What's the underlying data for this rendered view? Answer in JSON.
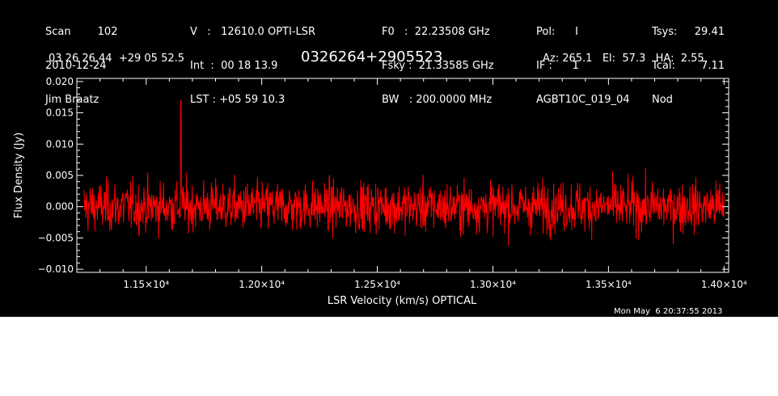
{
  "header": {
    "col1": [
      "Scan        102",
      "2010-12-24",
      "Jim Braatz"
    ],
    "col2": [
      "V   :   12610.0 OPTI-LSR",
      "Int  :  00 18 13.9",
      "LST : +05 59 10.3"
    ],
    "col3": [
      "F0   :  22.23508 GHz",
      "Fsky :  21.33585 GHz",
      "BW   : 200.0000 MHz"
    ],
    "col4": [
      "Pol:      I",
      "IF :      1",
      "AGBT10C_019_04"
    ],
    "col5a": [
      "Tsys:",
      "Tcal:",
      "Nod"
    ],
    "col5b": [
      "29.41",
      "7.11",
      ""
    ],
    "coords": "03 26 26.44  +29 05 52.5",
    "source": "0326264+2905523",
    "azel": "Az: 265.1   El:  57.3   HA:  2.55",
    "timestamp": "Mon May  6 20:37:55 2013"
  },
  "chart_data": {
    "type": "line",
    "xlabel": "LSR Velocity (km/s) OPTICAL",
    "ylabel": "Flux Density (Jy)",
    "xlim": [
      11200,
      14020
    ],
    "ylim": [
      -0.0105,
      0.0205
    ],
    "x_ticks": [
      11500,
      12000,
      12500,
      13000,
      13500,
      14000
    ],
    "x_tick_labels": [
      "1.15×10⁴",
      "1.20×10⁴",
      "1.25×10⁴",
      "1.30×10⁴",
      "1.35×10⁴",
      "1.40×10⁴"
    ],
    "y_ticks": [
      -0.01,
      -0.005,
      0.0,
      0.005,
      0.01,
      0.015,
      0.02
    ],
    "y_tick_labels": [
      "−0.010",
      "−0.005",
      "0.000",
      "0.005",
      "0.010",
      "0.015",
      "0.020"
    ],
    "grid": false,
    "series": [
      {
        "color": "#ff0000",
        "x_start": 11230,
        "x_end": 14000,
        "noise_rms": 0.0022,
        "spike": {
          "x": 11650,
          "y": 0.017
        }
      }
    ]
  },
  "colors": {
    "background": "#000000",
    "axes": "#ffffff",
    "trace": "#ff0000"
  }
}
